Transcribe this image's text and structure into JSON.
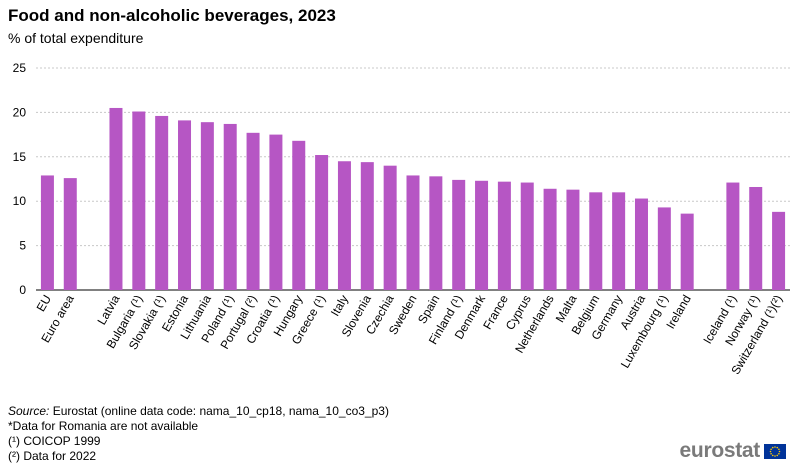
{
  "title": "Food and non-alcoholic beverages, 2023",
  "subtitle": "% of total expenditure",
  "footer": {
    "source_label": "Source:",
    "source_text": "Eurostat (online data code: nama_10_cp18, nama_10_co3_p3)",
    "note_romania": "*Data for Romania are not available",
    "note1": "(¹) COICOP 1999",
    "note2": "(²) Data for 2022"
  },
  "logo": {
    "text": "eurostat",
    "flag_icon": "eu-flag-icon"
  },
  "colors": {
    "bar": "#b656c4",
    "grid": "#c8c8c8",
    "axis": "#000000"
  },
  "chart_data": {
    "type": "bar",
    "title": "Food and non-alcoholic beverages, 2023",
    "ylabel": "% of total expenditure",
    "xlabel": "",
    "ylim": [
      0,
      25
    ],
    "yticks": [
      0,
      5,
      10,
      15,
      20,
      25
    ],
    "grid": true,
    "categories": [
      "EU",
      "Euro area",
      "",
      "Latvia",
      "Bulgaria (¹)",
      "Slovakia (¹)",
      "Estonia",
      "Lithuania",
      "Poland (¹)",
      "Portugal (²)",
      "Croatia (¹)",
      "Hungary",
      "Greece (¹)",
      "Italy",
      "Slovenia",
      "Czechia",
      "Sweden",
      "Spain",
      "Finland (¹)",
      "Denmark",
      "France",
      "Cyprus",
      "Netherlands",
      "Malta",
      "Belgium",
      "Germany",
      "Austria",
      "Luxembourg (¹)",
      "Ireland",
      "",
      "Iceland (¹)",
      "Norway (¹)",
      "Switzerland (¹)(²)"
    ],
    "values": [
      12.9,
      12.6,
      null,
      20.5,
      20.1,
      19.6,
      19.1,
      18.9,
      18.7,
      17.7,
      17.5,
      16.8,
      15.2,
      14.5,
      14.4,
      14.0,
      12.9,
      12.8,
      12.4,
      12.3,
      12.2,
      12.1,
      11.4,
      11.3,
      11.0,
      11.0,
      10.3,
      9.3,
      8.6,
      null,
      12.1,
      11.6,
      8.8
    ]
  }
}
